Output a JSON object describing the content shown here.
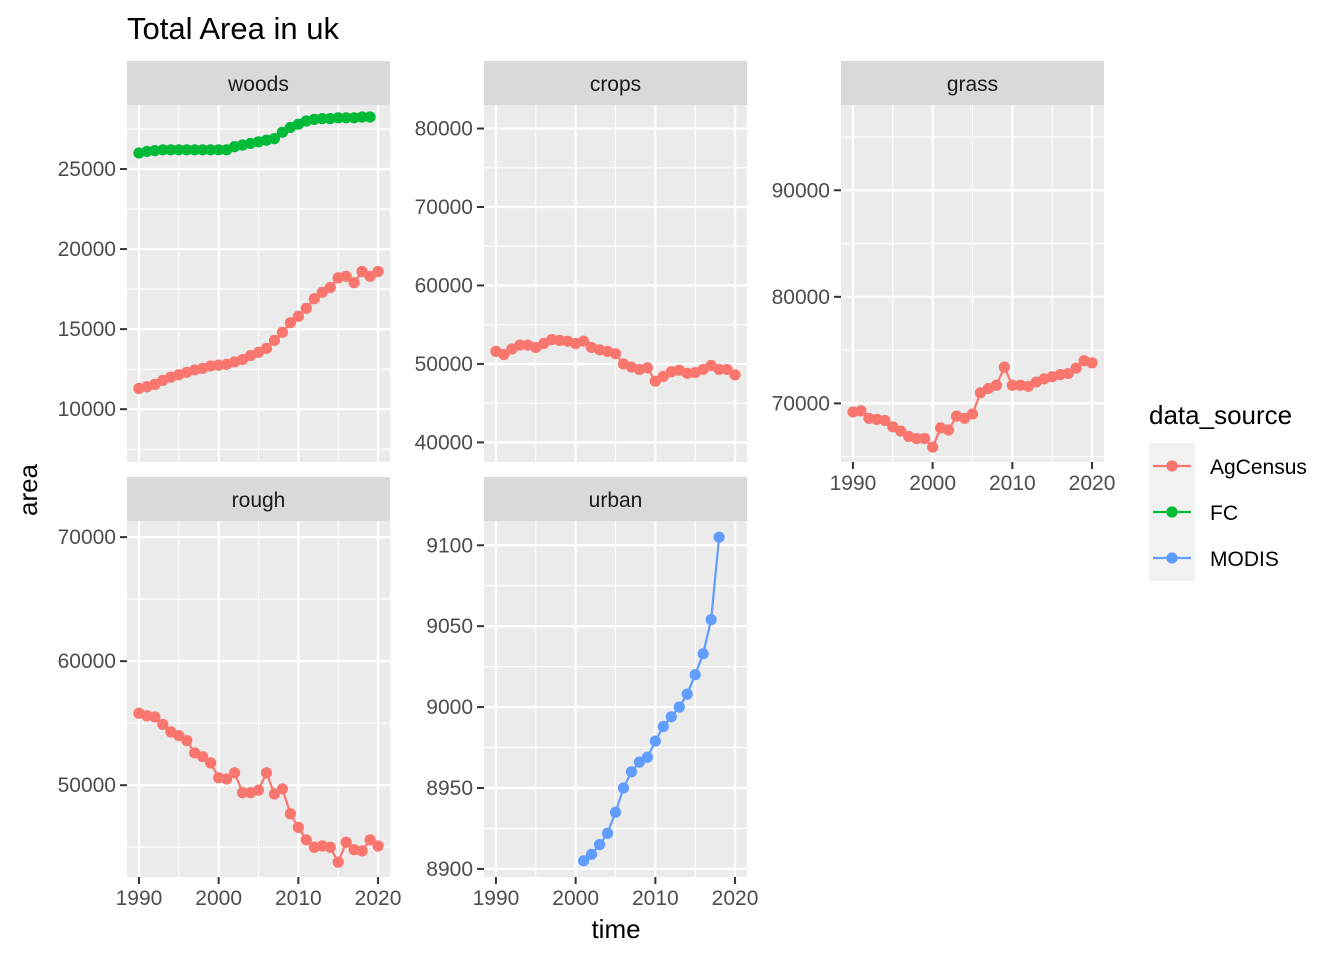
{
  "chart_data": {
    "type": "line",
    "title": "Total Area in uk",
    "xlabel": "time",
    "ylabel": "area",
    "x_ticks": [
      1990,
      2000,
      2010,
      2020
    ],
    "legend": {
      "title": "data_source",
      "position": "right",
      "entries": [
        {
          "name": "AgCensus",
          "color": "#F8766D"
        },
        {
          "name": "FC",
          "color": "#00BA38"
        },
        {
          "name": "MODIS",
          "color": "#619CFF"
        }
      ]
    },
    "grid": true,
    "panels": [
      {
        "name": "woods",
        "xlim": [
          1988.5,
          2021.5
        ],
        "ylim": [
          6700,
          29000
        ],
        "y_ticks": [
          10000,
          15000,
          20000,
          25000
        ],
        "series": [
          {
            "name": "AgCensus",
            "x": [
              1990,
              1991,
              1992,
              1993,
              1994,
              1995,
              1996,
              1997,
              1998,
              1999,
              2000,
              2001,
              2002,
              2003,
              2004,
              2005,
              2006,
              2007,
              2008,
              2009,
              2010,
              2011,
              2012,
              2013,
              2014,
              2015,
              2016,
              2017,
              2018,
              2019,
              2020
            ],
            "y": [
              11300,
              11400,
              11550,
              11800,
              12000,
              12150,
              12300,
              12450,
              12550,
              12700,
              12750,
              12800,
              12950,
              13100,
              13350,
              13550,
              13800,
              14300,
              14800,
              15400,
              15800,
              16300,
              16900,
              17300,
              17600,
              18200,
              18300,
              17900,
              18600,
              18300,
              18600
            ]
          },
          {
            "name": "FC",
            "x": [
              1990,
              1991,
              1992,
              1993,
              1994,
              1995,
              1996,
              1997,
              1998,
              1999,
              2000,
              2001,
              2002,
              2003,
              2004,
              2005,
              2006,
              2007,
              2008,
              2009,
              2010,
              2011,
              2012,
              2013,
              2014,
              2015,
              2016,
              2017,
              2018,
              2019
            ],
            "y": [
              26000,
              26100,
              26150,
              26200,
              26200,
              26200,
              26200,
              26200,
              26200,
              26200,
              26200,
              26200,
              26400,
              26500,
              26600,
              26700,
              26800,
              26900,
              27300,
              27600,
              27800,
              28000,
              28100,
              28150,
              28150,
              28200,
              28200,
              28200,
              28250,
              28250
            ]
          }
        ]
      },
      {
        "name": "crops",
        "xlim": [
          1988.5,
          2021.5
        ],
        "ylim": [
          37500,
          83000
        ],
        "y_ticks": [
          40000,
          50000,
          60000,
          70000,
          80000
        ],
        "series": [
          {
            "name": "AgCensus",
            "x": [
              1990,
              1991,
              1992,
              1993,
              1994,
              1995,
              1996,
              1997,
              1998,
              1999,
              2000,
              2001,
              2002,
              2003,
              2004,
              2005,
              2006,
              2007,
              2008,
              2009,
              2010,
              2011,
              2012,
              2013,
              2014,
              2015,
              2016,
              2017,
              2018,
              2019,
              2020
            ],
            "y": [
              51600,
              51200,
              51900,
              52400,
              52400,
              52100,
              52600,
              53100,
              53000,
              52900,
              52600,
              52900,
              52100,
              51800,
              51600,
              51300,
              50000,
              49600,
              49300,
              49500,
              47800,
              48400,
              49000,
              49200,
              48800,
              48900,
              49300,
              49800,
              49300,
              49300,
              48600
            ]
          }
        ]
      },
      {
        "name": "grass",
        "xlim": [
          1988.5,
          2021.5
        ],
        "ylim": [
          64500,
          98000
        ],
        "y_ticks": [
          70000,
          80000,
          90000
        ],
        "series": [
          {
            "name": "AgCensus",
            "x": [
              1990,
              1991,
              1992,
              1993,
              1994,
              1995,
              1996,
              1997,
              1998,
              1999,
              2000,
              2001,
              2002,
              2003,
              2004,
              2005,
              2006,
              2007,
              2008,
              2009,
              2010,
              2011,
              2012,
              2013,
              2014,
              2015,
              2016,
              2017,
              2018,
              2019,
              2020
            ],
            "y": [
              69200,
              69300,
              68600,
              68500,
              68400,
              67800,
              67400,
              66900,
              66700,
              66700,
              65900,
              67700,
              67500,
              68800,
              68600,
              69000,
              71000,
              71400,
              71700,
              73400,
              71700,
              71700,
              71600,
              72000,
              72300,
              72500,
              72700,
              72800,
              73300,
              74000,
              73800
            ]
          }
        ]
      },
      {
        "name": "rough",
        "xlim": [
          1988.5,
          2021.5
        ],
        "ylim": [
          42600,
          71300
        ],
        "y_ticks": [
          50000,
          60000,
          70000
        ],
        "series": [
          {
            "name": "AgCensus",
            "x": [
              1990,
              1991,
              1992,
              1993,
              1994,
              1995,
              1996,
              1997,
              1998,
              1999,
              2000,
              2001,
              2002,
              2003,
              2004,
              2005,
              2006,
              2007,
              2008,
              2009,
              2010,
              2011,
              2012,
              2013,
              2014,
              2015,
              2016,
              2017,
              2018,
              2019,
              2020
            ],
            "y": [
              55800,
              55600,
              55500,
              54900,
              54300,
              54000,
              53600,
              52600,
              52300,
              51800,
              50600,
              50500,
              51000,
              49400,
              49400,
              49600,
              51000,
              49300,
              49700,
              47700,
              46600,
              45600,
              45000,
              45100,
              45000,
              43800,
              45400,
              44800,
              44700,
              45600,
              45100
            ]
          }
        ]
      },
      {
        "name": "urban",
        "xlim": [
          1988.5,
          2021.5
        ],
        "ylim": [
          8895,
          9115
        ],
        "y_ticks": [
          8900,
          8950,
          9000,
          9050,
          9100
        ],
        "series": [
          {
            "name": "MODIS",
            "x": [
              2001,
              2002,
              2003,
              2004,
              2005,
              2006,
              2007,
              2008,
              2009,
              2010,
              2011,
              2012,
              2013,
              2014,
              2015,
              2016,
              2017,
              2018
            ],
            "y": [
              8905,
              8909,
              8915,
              8922,
              8935,
              8950,
              8960,
              8966,
              8969,
              8979,
              8988,
              8994,
              9000,
              9008,
              9020,
              9033,
              9054,
              9105
            ]
          }
        ]
      }
    ]
  }
}
